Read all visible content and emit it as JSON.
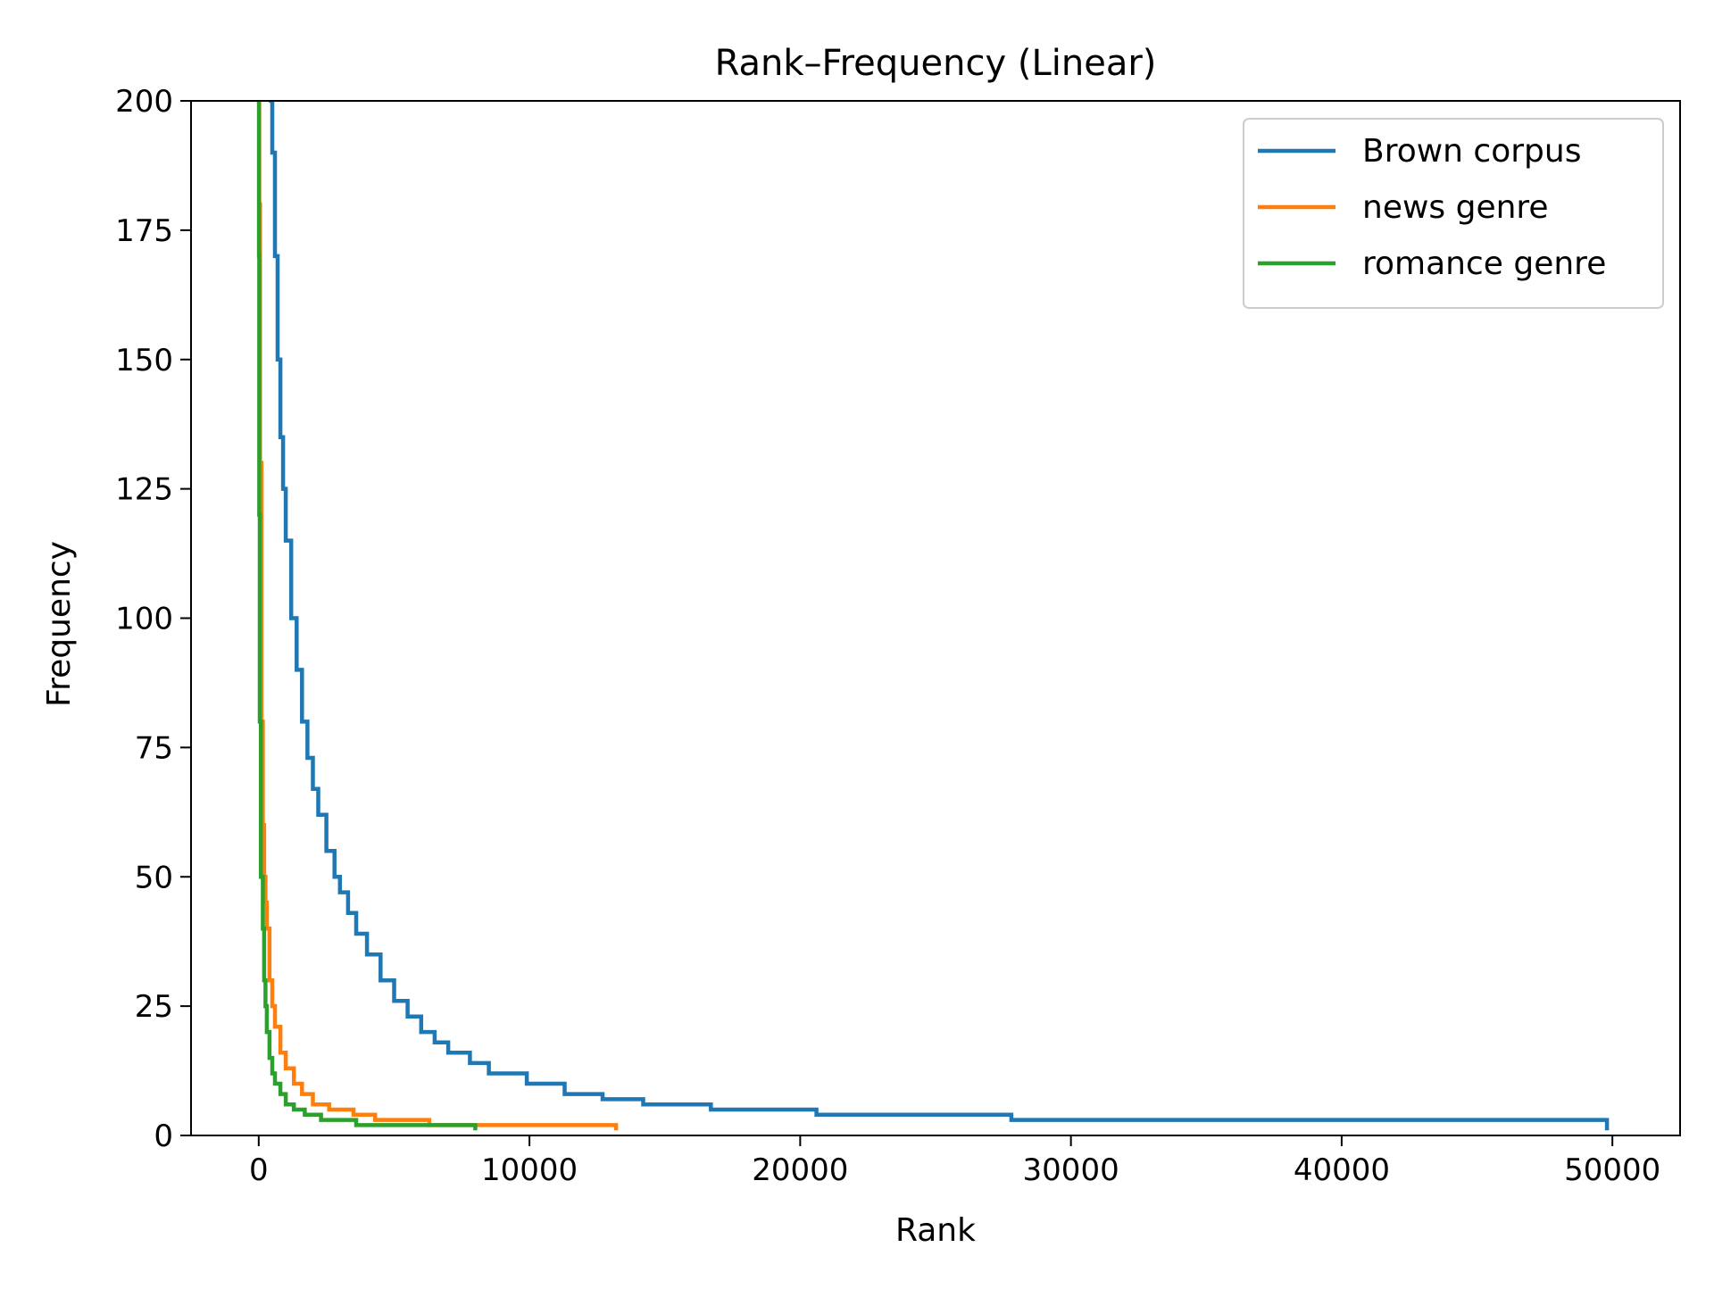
{
  "chart_data": {
    "type": "line",
    "title": "Rank–Frequency (Linear)",
    "xlabel": "Rank",
    "ylabel": "Frequency",
    "xlim": [
      -2500,
      52500
    ],
    "ylim": [
      0,
      200
    ],
    "xticks": [
      0,
      10000,
      20000,
      30000,
      40000,
      50000
    ],
    "xtick_labels": [
      "0",
      "10000",
      "20000",
      "30000",
      "40000",
      "50000"
    ],
    "yticks": [
      0,
      25,
      50,
      75,
      100,
      125,
      150,
      175,
      200
    ],
    "ytick_labels": [
      "0",
      "25",
      "50",
      "75",
      "100",
      "125",
      "150",
      "175",
      "200"
    ],
    "grid": false,
    "legend_position": "top-right",
    "series": [
      {
        "name": "Brown corpus",
        "color": "#1f77b4",
        "x": [
          450,
          500,
          600,
          700,
          800,
          900,
          1000,
          1200,
          1400,
          1600,
          1800,
          2000,
          2200,
          2500,
          2800,
          3000,
          3300,
          3600,
          4000,
          4500,
          5000,
          5500,
          6000,
          6500,
          7000,
          7800,
          8500,
          9900,
          11300,
          12700,
          14200,
          16700,
          20600,
          27800,
          49800
        ],
        "y": [
          200,
          190,
          170,
          150,
          135,
          125,
          115,
          100,
          90,
          80,
          73,
          67,
          62,
          55,
          50,
          47,
          43,
          39,
          35,
          30,
          26,
          23,
          20,
          18,
          16,
          14,
          12,
          10,
          8,
          7,
          6,
          5,
          4,
          3,
          2
        ]
      },
      {
        "name": "news genre",
        "color": "#ff7f0e",
        "x": [
          5,
          20,
          50,
          100,
          150,
          200,
          250,
          300,
          400,
          500,
          600,
          800,
          1000,
          1300,
          1600,
          2000,
          2600,
          3500,
          4300,
          6300,
          13200
        ],
        "y": [
          200,
          180,
          130,
          80,
          60,
          50,
          45,
          40,
          30,
          25,
          21,
          16,
          13,
          10,
          8,
          6,
          5,
          4,
          3,
          2,
          1
        ]
      },
      {
        "name": "romance genre",
        "color": "#2ca02c",
        "x": [
          3,
          10,
          20,
          40,
          80,
          150,
          200,
          250,
          300,
          400,
          500,
          600,
          800,
          1000,
          1300,
          1700,
          2300,
          3600,
          8000
        ],
        "y": [
          200,
          170,
          120,
          80,
          50,
          40,
          30,
          25,
          20,
          15,
          12,
          10,
          8,
          6,
          5,
          4,
          3,
          2,
          1
        ]
      }
    ]
  }
}
